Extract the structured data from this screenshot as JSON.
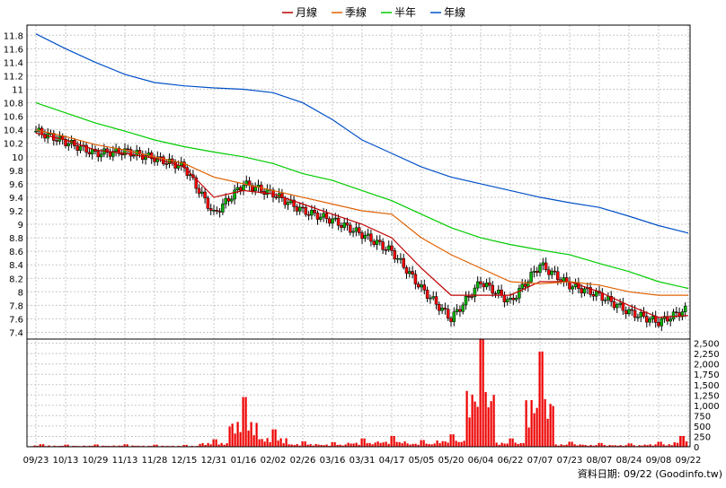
{
  "source_label": "資料日期: 09/22 (Goodinfo.tw)",
  "colors": {
    "up_candle": "#00b400",
    "down_candle": "#ff0000",
    "ma_month": "#c00000",
    "ma_season": "#e06000",
    "ma_halfyear": "#00cc00",
    "ma_year": "#0050c8",
    "volume": "#ee0000",
    "grid": "#c8c8c8"
  },
  "chart_data": [
    {
      "type": "line",
      "subtype": "candlestick",
      "legend_position": "top-center",
      "legend": [
        "月線",
        "季線",
        "半年",
        "年線"
      ],
      "x_tick_labels": [
        "09/23",
        "10/13",
        "10/29",
        "11/13",
        "11/28",
        "12/15",
        "12/31",
        "01/16",
        "02/02",
        "02/26",
        "03/16",
        "03/31",
        "04/17",
        "05/05",
        "05/20",
        "06/04",
        "06/22",
        "07/07",
        "07/23",
        "08/07",
        "08/24",
        "09/08",
        "09/22"
      ],
      "y_tick_labels": [
        "7.4",
        "7.6",
        "7.8",
        "8",
        "8.2",
        "8.4",
        "8.6",
        "8.8",
        "9",
        "9.2",
        "9.4",
        "9.6",
        "9.8",
        "10",
        "10.2",
        "10.4",
        "10.6",
        "10.8",
        "11",
        "11.2",
        "11.4",
        "11.6",
        "11.8"
      ],
      "ylim": [
        7.3,
        11.95
      ],
      "grid": true,
      "price_points": [
        {
          "x": "09/23",
          "close": 10.38
        },
        {
          "x": "10/13",
          "close": 10.22
        },
        {
          "x": "10/29",
          "close": 10.05
        },
        {
          "x": "11/13",
          "close": 10.08
        },
        {
          "x": "11/28",
          "close": 9.98
        },
        {
          "x": "12/15",
          "close": 9.85
        },
        {
          "x": "12/31",
          "close": 9.15
        },
        {
          "x": "01/16",
          "close": 9.6
        },
        {
          "x": "02/02",
          "close": 9.45
        },
        {
          "x": "02/26",
          "close": 9.2
        },
        {
          "x": "03/16",
          "close": 9.06
        },
        {
          "x": "03/31",
          "close": 8.85
        },
        {
          "x": "04/17",
          "close": 8.6
        },
        {
          "x": "05/05",
          "close": 8.05
        },
        {
          "x": "05/20",
          "close": 7.6
        },
        {
          "x": "06/04",
          "close": 8.15
        },
        {
          "x": "06/22",
          "close": 7.85
        },
        {
          "x": "07/07",
          "close": 8.4
        },
        {
          "x": "07/23",
          "close": 8.1
        },
        {
          "x": "08/07",
          "close": 7.95
        },
        {
          "x": "08/24",
          "close": 7.7
        },
        {
          "x": "09/08",
          "close": 7.55
        },
        {
          "x": "09/22",
          "close": 7.75
        }
      ],
      "series": [
        {
          "name": "月線",
          "values": [
            10.35,
            10.25,
            10.1,
            10.05,
            9.98,
            9.85,
            9.4,
            9.5,
            9.45,
            9.3,
            9.15,
            9.0,
            8.8,
            8.35,
            7.95,
            7.95,
            7.95,
            8.15,
            8.15,
            8.0,
            7.8,
            7.62,
            7.65
          ]
        },
        {
          "name": "季線",
          "values": [
            10.4,
            10.3,
            10.18,
            10.1,
            10.0,
            9.9,
            9.7,
            9.6,
            9.5,
            9.4,
            9.3,
            9.2,
            9.15,
            8.8,
            8.55,
            8.35,
            8.15,
            8.12,
            8.15,
            8.1,
            8.0,
            7.95,
            7.95
          ]
        },
        {
          "name": "半年",
          "values": [
            10.8,
            10.65,
            10.5,
            10.38,
            10.25,
            10.15,
            10.07,
            10.0,
            9.9,
            9.75,
            9.65,
            9.5,
            9.35,
            9.15,
            8.95,
            8.8,
            8.7,
            8.62,
            8.55,
            8.42,
            8.3,
            8.15,
            8.05
          ]
        },
        {
          "name": "年線",
          "values": [
            11.82,
            11.6,
            11.4,
            11.22,
            11.1,
            11.05,
            11.02,
            11.0,
            10.95,
            10.8,
            10.55,
            10.25,
            10.05,
            9.85,
            9.7,
            9.6,
            9.5,
            9.4,
            9.32,
            9.25,
            9.12,
            8.98,
            8.87
          ]
        }
      ]
    },
    {
      "type": "bar",
      "y_tick_labels": [
        "0",
        "250",
        "500",
        "750",
        "1,000",
        "1,250",
        "1,500",
        "1,750",
        "2,000",
        "2,250",
        "2,500"
      ],
      "ylim": [
        0,
        2600
      ],
      "categories": [
        "09/23",
        "10/13",
        "10/29",
        "11/13",
        "11/28",
        "12/15",
        "12/31",
        "01/16",
        "02/02",
        "02/26",
        "03/16",
        "03/31",
        "04/17",
        "05/05",
        "05/20",
        "06/04",
        "06/22",
        "07/07",
        "07/23",
        "08/07",
        "08/24",
        "09/08",
        "09/22"
      ],
      "values": [
        60,
        50,
        55,
        60,
        50,
        45,
        180,
        1200,
        420,
        130,
        110,
        200,
        260,
        160,
        300,
        2700,
        200,
        2300,
        120,
        90,
        80,
        120,
        260
      ]
    }
  ]
}
